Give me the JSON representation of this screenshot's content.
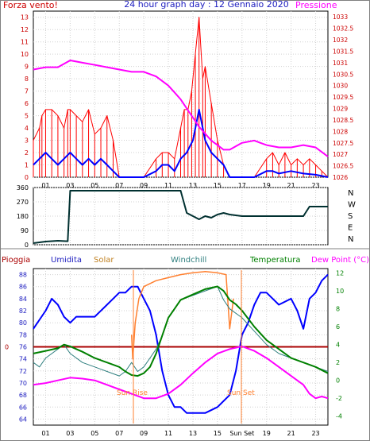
{
  "header": {
    "left": "Forza vento!",
    "title": "24 hour graph day : 12 Gennaio 2020",
    "right": "Pressione"
  },
  "sun": {
    "rise": "Sun Rise",
    "set": "Sun Set"
  },
  "colors": {
    "wind": "#ff0000",
    "gust": "#0000ff",
    "pressure": "#ff00ff",
    "direction": "#003030",
    "humidity": "#0000ff",
    "solar": "#ff8030",
    "windchill": "#2f7f7f",
    "temperature": "#008000",
    "dewpoint": "#ff00ff",
    "rain": "#aa0000"
  },
  "chart_data": [
    {
      "type": "line",
      "title": "24 hour graph day : 12 Gennaio 2020",
      "ylabel": "Forza vento!",
      "y2label": "Pressione",
      "x_ticks": [
        "01",
        "03",
        "05",
        "07",
        "09",
        "11",
        "13",
        "15",
        "17",
        "19",
        "21",
        "23"
      ],
      "y_ticks": [
        "0",
        "1",
        "2",
        "3",
        "4",
        "5",
        "6",
        "7",
        "8",
        "9",
        "10",
        "11",
        "12",
        "13"
      ],
      "y2_ticks": [
        "1026",
        "1026.5",
        "1027",
        "1027.5",
        "1028",
        "1028.5",
        "1029",
        "1029.5",
        "1030",
        "1030.5",
        "1031",
        "1031.5",
        "1032",
        "1032.5",
        "1033"
      ],
      "ylim": [
        0,
        13.5
      ],
      "y2lim": [
        1026,
        1033.25
      ],
      "xlim": [
        0,
        24
      ],
      "series": [
        {
          "name": "Forza vento!",
          "x": [
            0,
            0.5,
            0.7,
            1,
            1.5,
            2,
            2.5,
            2.8,
            3,
            3.5,
            4,
            4.5,
            5,
            5.5,
            6,
            6.5,
            7,
            9,
            10,
            10.5,
            11,
            11.5,
            12,
            12.3,
            12.6,
            12.9,
            13.2,
            13.5,
            13.8,
            14,
            14.5,
            15,
            15.5,
            16,
            17,
            18,
            19,
            19.5,
            20,
            20.5,
            21,
            21.5,
            22,
            22.5,
            23,
            23.5,
            24
          ],
          "values": [
            3,
            4,
            5,
            5.5,
            5.5,
            5,
            4,
            5.5,
            5.5,
            5,
            4.5,
            5.5,
            3.5,
            4,
            5,
            3,
            0,
            0,
            1.5,
            2,
            2,
            1.5,
            4,
            5.5,
            5.5,
            7,
            10,
            13,
            8,
            9,
            6,
            3,
            1,
            0,
            0,
            0,
            1.5,
            2,
            1,
            2,
            1,
            1.5,
            1,
            1.5,
            1,
            0.5,
            0
          ]
        },
        {
          "name": "Raffica",
          "x": [
            0,
            0.5,
            1,
            1.5,
            2,
            2.5,
            3,
            3.5,
            4,
            4.5,
            5,
            5.5,
            6,
            6.5,
            7,
            9,
            10,
            10.5,
            11,
            11.5,
            12,
            12.5,
            13,
            13.5,
            14,
            14.5,
            15,
            15.5,
            16,
            18,
            19,
            19.5,
            20,
            21,
            22,
            23,
            24
          ],
          "values": [
            1,
            1.5,
            2,
            1.5,
            1,
            1.5,
            2,
            1.5,
            1,
            1.5,
            1,
            1.5,
            1,
            0.5,
            0,
            0,
            0.5,
            1,
            1,
            0.5,
            1.5,
            2,
            3,
            5.5,
            3,
            2,
            1.5,
            1,
            0,
            0,
            0.5,
            0.5,
            0.3,
            0.5,
            0.3,
            0.2,
            0
          ]
        },
        {
          "name": "Pressione",
          "axis": "y2",
          "x": [
            0,
            1,
            2,
            3,
            4,
            5,
            6,
            7,
            8,
            9,
            10,
            10.5,
            11,
            11.5,
            12,
            12.5,
            13,
            13.5,
            14,
            14.5,
            15,
            15.5,
            16,
            17,
            18,
            18.5,
            19,
            20,
            21,
            22,
            23,
            23.5,
            24
          ],
          "values": [
            1030.7,
            1030.8,
            1030.8,
            1031.1,
            1031,
            1030.9,
            1030.8,
            1030.7,
            1030.6,
            1030.6,
            1030.4,
            1030.2,
            1030,
            1029.7,
            1029.4,
            1029,
            1028.6,
            1028.2,
            1027.9,
            1027.6,
            1027.4,
            1027.2,
            1027.2,
            1027.5,
            1027.6,
            1027.5,
            1027.4,
            1027.3,
            1027.3,
            1027.4,
            1027.3,
            1027.1,
            1026.9
          ]
        }
      ]
    },
    {
      "type": "line",
      "title": "",
      "y_ticks": [
        "360",
        "270",
        "180",
        "90",
        "0"
      ],
      "y2_ticks": [
        "N",
        "W",
        "S",
        "E",
        "N"
      ],
      "ylim": [
        0,
        360
      ],
      "xlim": [
        0,
        24
      ],
      "series": [
        {
          "name": "",
          "x": [
            0,
            1,
            2,
            2.8,
            3,
            3.5,
            11,
            12,
            12.5,
            13,
            13.5,
            14,
            14.5,
            15,
            15.5,
            16,
            17,
            18,
            19,
            20,
            21,
            22,
            22.5,
            23,
            24
          ],
          "values": [
            10,
            20,
            25,
            22,
            340,
            340,
            340,
            340,
            200,
            180,
            160,
            180,
            170,
            190,
            200,
            190,
            180,
            180,
            180,
            180,
            180,
            180,
            240,
            240,
            240
          ]
        }
      ]
    },
    {
      "type": "line",
      "title": "",
      "legend": [
        "Pioggia",
        "Umidita",
        "Solar",
        "Windchill",
        "Temperatura",
        "Dew Point (°C)"
      ],
      "x_ticks": [
        "01",
        "03",
        "05",
        "07",
        "09",
        "11",
        "13",
        "15",
        "Sun Set",
        "19",
        "21",
        "23"
      ],
      "ylim": [
        63,
        89
      ],
      "y2lim": [
        -5,
        12.5
      ],
      "xlim": [
        0,
        24
      ],
      "y_ticks": [
        "64",
        "66",
        "68",
        "70",
        "72",
        "74",
        "76",
        "78",
        "80",
        "82",
        "84",
        "86",
        "88"
      ],
      "y2_ticks": [
        "-4",
        "-2",
        "0",
        "2",
        "4",
        "6",
        "8",
        "10",
        "12"
      ],
      "rain_label": "0",
      "series": [
        {
          "name": "Pioggia",
          "x": [
            0,
            24
          ],
          "values": [
            76,
            76
          ]
        },
        {
          "name": "Umidita",
          "x": [
            0,
            1,
            1.5,
            2,
            2.5,
            3,
            3.5,
            4,
            5,
            6,
            6.5,
            7,
            7.5,
            8,
            8.5,
            9,
            9.5,
            10,
            10.5,
            11,
            11.5,
            12,
            12.5,
            13,
            14,
            15,
            16,
            16.5,
            17,
            17.5,
            18,
            18.5,
            19,
            20,
            21,
            21.5,
            22,
            22.5,
            23,
            23.5,
            24
          ],
          "values": [
            79,
            82,
            84,
            83,
            81,
            80,
            81,
            81,
            81,
            83,
            84,
            85,
            85,
            86,
            86,
            84,
            82,
            78,
            72,
            68,
            66,
            66,
            65,
            65,
            65,
            66,
            68,
            72,
            78,
            80,
            83,
            85,
            85,
            83,
            84,
            82,
            79,
            84,
            85,
            87,
            88
          ]
        },
        {
          "name": "Solar",
          "x": [
            0,
            7.9,
            8,
            8.1,
            8.3,
            8.6,
            9,
            10,
            11,
            12,
            13,
            14,
            15,
            15.7,
            16,
            16.3,
            16.6,
            17,
            24
          ],
          "values": [
            null,
            null,
            78,
            74,
            80,
            84,
            86,
            87,
            87.5,
            88,
            88.3,
            88.5,
            88.3,
            88,
            79,
            84,
            null,
            null,
            null
          ]
        },
        {
          "name": "Windchill",
          "axis": "y2",
          "x": [
            0,
            0.5,
            1,
            2,
            2.5,
            3,
            4,
            5,
            6,
            7,
            7.5,
            8,
            8.5,
            9,
            9.5,
            10,
            10.5,
            11,
            11.5,
            12,
            13,
            14,
            15,
            15.5,
            16,
            17,
            18,
            19,
            20,
            21,
            22,
            23,
            24
          ],
          "values": [
            2,
            1.5,
            2.5,
            3.5,
            4,
            3,
            2,
            1.5,
            1,
            0.5,
            1,
            2,
            1,
            1.5,
            2.5,
            3.5,
            5,
            7,
            8,
            9,
            9.5,
            10,
            10.5,
            9,
            8,
            7,
            5.5,
            4,
            3,
            2.5,
            2,
            1.5,
            1
          ]
        },
        {
          "name": "Temperatura",
          "axis": "y2",
          "x": [
            0,
            1,
            2,
            2.5,
            3,
            4,
            5,
            6,
            7,
            7.5,
            8,
            8.5,
            9,
            9.5,
            10,
            10.5,
            11,
            11.5,
            12,
            13,
            14,
            15,
            15.5,
            16,
            16.5,
            17,
            18,
            19,
            20,
            21,
            22,
            23,
            24
          ],
          "values": [
            3,
            3.3,
            3.6,
            4,
            3.8,
            3.2,
            2.5,
            2,
            1.5,
            1,
            0.6,
            0.5,
            0.8,
            1.5,
            3,
            5,
            7,
            8,
            9,
            9.6,
            10.2,
            10.5,
            10,
            9,
            8.5,
            7.8,
            6,
            4.5,
            3.5,
            2.5,
            2,
            1.5,
            0.8
          ]
        },
        {
          "name": "Dew Point (°C)",
          "axis": "y2",
          "x": [
            0,
            1,
            2,
            3,
            4,
            5,
            6,
            7,
            8,
            9,
            10,
            11,
            12,
            13,
            14,
            15,
            16,
            17,
            18,
            19,
            20,
            21,
            22,
            22.5,
            23,
            23.5,
            24
          ],
          "values": [
            -0.5,
            -0.3,
            0,
            0.3,
            0.2,
            0,
            -0.5,
            -1,
            -1.5,
            -2,
            -2,
            -1.5,
            -0.5,
            0.8,
            2,
            3,
            3.5,
            3.8,
            3.3,
            2.5,
            1.5,
            0.5,
            -0.5,
            -1.5,
            -2,
            -1.8,
            -2
          ]
        }
      ]
    }
  ]
}
